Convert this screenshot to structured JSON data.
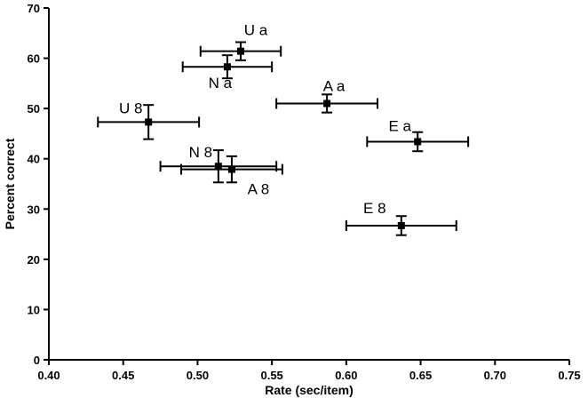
{
  "chart_data": {
    "type": "scatter",
    "title": "",
    "xlabel": "Rate (sec/item)",
    "ylabel": "Percent correct",
    "xlim": [
      0.4,
      0.75
    ],
    "ylim": [
      0,
      70
    ],
    "x_ticks": [
      "0.40",
      "0.45",
      "0.50",
      "0.55",
      "0.60",
      "0.65",
      "0.70",
      "0.75"
    ],
    "y_ticks": [
      "0",
      "10",
      "20",
      "30",
      "40",
      "50",
      "60",
      "70"
    ],
    "grid": false,
    "legend": "none",
    "marker": "square",
    "color": "#000000",
    "points": [
      {
        "label": "U a",
        "x": 0.529,
        "y": 61.4,
        "xerr": 0.027,
        "yerr": 1.8
      },
      {
        "label": "N a",
        "x": 0.52,
        "y": 58.3,
        "xerr": 0.03,
        "yerr": 2.3
      },
      {
        "label": "U 8",
        "x": 0.467,
        "y": 47.3,
        "xerr": 0.034,
        "yerr": 3.4
      },
      {
        "label": "A a",
        "x": 0.587,
        "y": 51.0,
        "xerr": 0.034,
        "yerr": 1.8
      },
      {
        "label": "E a",
        "x": 0.648,
        "y": 43.4,
        "xerr": 0.034,
        "yerr": 1.9
      },
      {
        "label": "N 8",
        "x": 0.514,
        "y": 38.5,
        "xerr": 0.039,
        "yerr": 3.2
      },
      {
        "label": "A 8",
        "x": 0.523,
        "y": 37.9,
        "xerr": 0.034,
        "yerr": 2.6
      },
      {
        "label": "E 8",
        "x": 0.637,
        "y": 26.7,
        "xerr": 0.037,
        "yerr": 1.9
      }
    ]
  }
}
